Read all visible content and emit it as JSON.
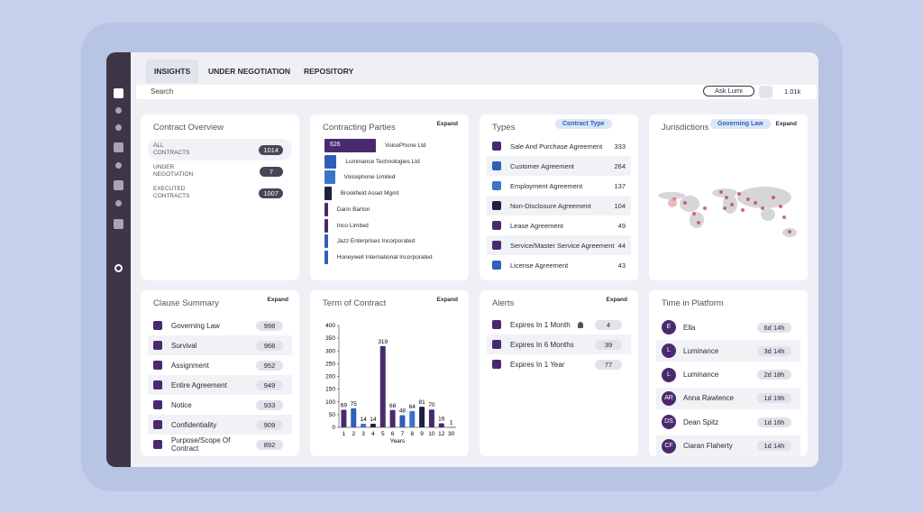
{
  "tabs": [
    "INSIGHTS",
    "UNDER NEGOTIATION",
    "REPOSITORY"
  ],
  "search": "Search",
  "ask": "Ask Lumi",
  "count": "1.01k",
  "overview": {
    "title": "Contract Overview",
    "rows": [
      {
        "label": [
          "ALL",
          "CONTRACTS"
        ],
        "value": 1014
      },
      {
        "label": [
          "UNDER",
          "NEGOTIATION"
        ],
        "value": 7
      },
      {
        "label": [
          "EXECUTED",
          "CONTRACTS"
        ],
        "value": 1007
      }
    ]
  },
  "parties": {
    "title": "Contracting Parties",
    "expand": "Expand",
    "items": [
      {
        "name": "VoicePhone Ltd",
        "value": 626,
        "color": "#4a2a6e"
      },
      {
        "name": "Luminance Technologies Ltd",
        "value": 130,
        "color": "#2f5fb8"
      },
      {
        "name": "Voicephone Limited",
        "value": 110,
        "color": "#3b74c9"
      },
      {
        "name": "Brookfield Asset Mgmt",
        "value": 65,
        "color": "#1f2140"
      },
      {
        "name": "Darin Barton",
        "value": 20,
        "color": "#4a2a6e"
      },
      {
        "name": "Inco Limited",
        "value": 20,
        "color": "#4a2a6e"
      },
      {
        "name": "Jazz Enterprises Incorporated",
        "value": 20,
        "color": "#2f5fb8"
      },
      {
        "name": "Honeywell International Incorporated",
        "value": 20,
        "color": "#2f5fb8"
      }
    ]
  },
  "types": {
    "title": "Types",
    "filter": "Contract Type",
    "items": [
      {
        "name": "Sale And Purchase Agreement",
        "value": 333,
        "color": "#4a2a6e"
      },
      {
        "name": "Customer Agreement",
        "value": 264,
        "color": "#2f5fb8"
      },
      {
        "name": "Employment Agreement",
        "value": 137,
        "color": "#3b74c9"
      },
      {
        "name": "Non-Disclosure Agreement",
        "value": 104,
        "color": "#1f2140"
      },
      {
        "name": "Lease Agreement",
        "value": 49,
        "color": "#4a2a6e"
      },
      {
        "name": "Service/Master Service Agreement",
        "value": 44,
        "color": "#4a2a6e"
      },
      {
        "name": "License Agreement",
        "value": 43,
        "color": "#2f5fb8"
      }
    ]
  },
  "jurisdictions": {
    "title": "Jurisdictions",
    "filter": "Governing Law",
    "expand": "Expand"
  },
  "clauses": {
    "title": "Clause Summary",
    "expand": "Expand",
    "items": [
      {
        "name": "Governing Law",
        "value": 998
      },
      {
        "name": "Survival",
        "value": 968
      },
      {
        "name": "Assignment",
        "value": 952
      },
      {
        "name": "Entire Agreement",
        "value": 949
      },
      {
        "name": "Notice",
        "value": 933
      },
      {
        "name": "Confidentiality",
        "value": 909
      },
      {
        "name": "Purpose/Scope Of Contract",
        "value": 892
      }
    ]
  },
  "chart_data": {
    "type": "bar",
    "title": "Term of Contract",
    "expand": "Expand",
    "x_label": "Years",
    "categories": [
      "1",
      "2",
      "3",
      "4",
      "5",
      "6",
      "7",
      "8",
      "9",
      "10",
      "12",
      "30"
    ],
    "values": [
      69,
      75,
      14,
      14,
      319,
      68,
      48,
      64,
      81,
      70,
      16,
      1
    ],
    "colors": [
      "#4a2a6e",
      "#2f5fb8",
      "#3b74c9",
      "#1f2140",
      "#4a2a6e",
      "#4a2a6e",
      "#2f5fb8",
      "#3b74c9",
      "#1f2140",
      "#4a2a6e",
      "#4a2a6e",
      "#1f2140"
    ],
    "ylim": [
      0,
      400
    ],
    "yticks": [
      0,
      50,
      100,
      150,
      200,
      250,
      300,
      350,
      400
    ]
  },
  "alerts": {
    "title": "Alerts",
    "expand": "Expand",
    "items": [
      {
        "name": "Expires In 1 Month",
        "value": 4
      },
      {
        "name": "Expires In 6 Months",
        "value": 39
      },
      {
        "name": "Expires In 1 Year",
        "value": 77
      }
    ]
  },
  "time": {
    "title": "Time in Platform",
    "items": [
      {
        "initials": "E",
        "name": "Ella",
        "duration": "6d 14h"
      },
      {
        "initials": "L",
        "name": "Luminance",
        "duration": "3d 14h"
      },
      {
        "initials": "L",
        "name": "Luminance",
        "duration": "2d 18h"
      },
      {
        "initials": "AR",
        "name": "Anna Rawlence",
        "duration": "1d 19h"
      },
      {
        "initials": "DS",
        "name": "Dean Spitz",
        "duration": "1d 16h"
      },
      {
        "initials": "CF",
        "name": "Ciaran Flaherty",
        "duration": "1d 14h"
      }
    ]
  }
}
